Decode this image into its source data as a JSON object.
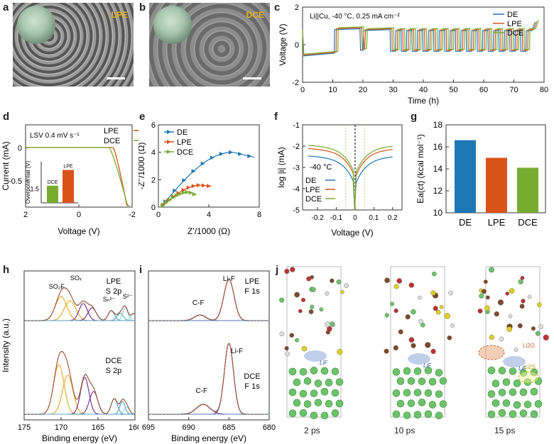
{
  "panels": {
    "a": {
      "letter": "a",
      "tag": "LPE"
    },
    "b": {
      "letter": "b",
      "tag": "DCE"
    },
    "c": {
      "letter": "c"
    },
    "d": {
      "letter": "d"
    },
    "e": {
      "letter": "e"
    },
    "f": {
      "letter": "f"
    },
    "g": {
      "letter": "g"
    },
    "h": {
      "letter": "h"
    },
    "i": {
      "letter": "i"
    },
    "j": {
      "letter": "j",
      "times": [
        "2 ps",
        "10 ps",
        "15 ps"
      ],
      "annotations": [
        "LiF",
        "LiF",
        "LiF",
        "Li2O",
        "Li2S"
      ]
    }
  },
  "colors": {
    "DE": "#1f77b4",
    "LPE": "#d95319",
    "DCE": "#77ac30"
  },
  "chart_data": [
    {
      "id": "c",
      "type": "line",
      "annotation": "Li||Cu, -40 °C, 0.25 mA cm⁻²",
      "xlabel": "Time (h)",
      "ylabel": "Voltage (V)",
      "xlim": [
        0,
        80
      ],
      "ylim": [
        -2,
        2
      ],
      "xticks": [
        "0",
        "10",
        "20",
        "30",
        "40",
        "50",
        "60",
        "70",
        "80"
      ],
      "yticks": [
        "-2",
        "0",
        "2"
      ],
      "series": [
        {
          "name": "DE"
        },
        {
          "name": "LPE"
        },
        {
          "name": "DCE"
        }
      ]
    },
    {
      "id": "d",
      "type": "line",
      "annotation": "LSV  0.4 mV s⁻¹",
      "xlabel": "Voltage (V)",
      "ylabel": "Current (mA)",
      "xlim": [
        2,
        -2
      ],
      "ylim": [
        -0.9,
        0.35
      ],
      "xticks": [
        "2",
        "0",
        "-2"
      ],
      "yticks": [
        "0",
        "-0.5"
      ],
      "series": [
        {
          "name": "LPE"
        },
        {
          "name": "DCE"
        }
      ],
      "inset": {
        "type": "bar",
        "ylabel": "Overpotential (V)",
        "yticks": [
          "1.5"
        ],
        "categories": [
          "DCE",
          "LPE"
        ],
        "values": [
          1.55,
          1.78
        ]
      }
    },
    {
      "id": "e",
      "type": "scatter",
      "xlabel": "Z’/1000 (Ω)",
      "ylabel": "-Z’’/1000 (Ω)",
      "xlim": [
        0,
        8
      ],
      "ylim": [
        0,
        6
      ],
      "xticks": [
        "0",
        "4",
        "8"
      ],
      "yticks": [
        "0",
        "2",
        "4",
        "6"
      ],
      "series": [
        {
          "name": "DE"
        },
        {
          "name": "LPE"
        },
        {
          "name": "DCE"
        }
      ]
    },
    {
      "id": "f",
      "type": "line",
      "annotation": "-40 °C",
      "xlabel": "Voltage (V)",
      "ylabel": "log |i| (mA)",
      "xlim": [
        -0.28,
        0.25
      ],
      "ylim": [
        -5,
        -1
      ],
      "xticks": [
        "-0.2",
        "-0.1",
        "0",
        "0.1",
        "0.2"
      ],
      "yticks": [
        "-1",
        "-2",
        "-3",
        "-4",
        "-5"
      ],
      "series": [
        {
          "name": "DE"
        },
        {
          "name": "LPE"
        },
        {
          "name": "DCE"
        }
      ]
    },
    {
      "id": "g",
      "type": "bar",
      "ylabel": "Ea(ct) (kcal mol⁻¹)",
      "categories": [
        "DE",
        "LPE",
        "DCE"
      ],
      "values": [
        16.6,
        15.0,
        14.1
      ],
      "ylim": [
        10,
        18
      ],
      "yticks": [
        "10",
        "12",
        "14",
        "16",
        "18"
      ]
    },
    {
      "id": "h",
      "type": "line",
      "xlabel": "Binding energy (eV)",
      "ylabel": "Intensity (a.u.)",
      "xlim": [
        175,
        160
      ],
      "xticks": [
        "175",
        "170",
        "165",
        "160"
      ],
      "top": {
        "title": "LPE",
        "subtitle": "S 2p",
        "peaks": [
          "SO₂F",
          "SOₓ",
          "Sₙ²⁻",
          "S²⁻"
        ]
      },
      "bottom": {
        "title": "DCE",
        "subtitle": "S 2p"
      }
    },
    {
      "id": "i",
      "type": "line",
      "xlabel": "Binding energy (eV)",
      "xlim": [
        695,
        680
      ],
      "xticks": [
        "695",
        "690",
        "685",
        "680"
      ],
      "top": {
        "title": "LPE",
        "subtitle": "F 1s",
        "peaks": [
          "C-F",
          "Li-F"
        ]
      },
      "bottom": {
        "title": "DCE",
        "subtitle": "F 1s",
        "peaks": [
          "C-F",
          "Li-F"
        ]
      }
    }
  ]
}
